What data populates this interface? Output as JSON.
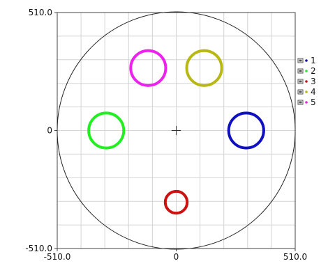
{
  "chart_data": {
    "type": "scatter",
    "title": "",
    "xlabel": "",
    "ylabel": "",
    "xlim": [
      -510.0,
      510.0
    ],
    "ylim": [
      -510.0,
      510.0
    ],
    "grid": true,
    "legend_position": "right",
    "x_tick_labels": [
      "-510.0",
      "0",
      "510.0"
    ],
    "y_tick_labels": [
      "510.0",
      "0",
      "-510.0"
    ],
    "x_tick_values": [
      -510.0,
      0,
      510.0
    ],
    "y_tick_values": [
      510.0,
      0,
      -510.0
    ],
    "boundary_circle": {
      "cx": 0,
      "cy": 0,
      "r": 510.0,
      "color": "#222222"
    },
    "center_marker": {
      "x": 0,
      "y": 0,
      "size": 20
    },
    "series": [
      {
        "name": "1",
        "color": "#1010c0",
        "cx": 300,
        "cy": 0,
        "r": 75
      },
      {
        "name": "2",
        "color": "#22ee22",
        "cx": -300,
        "cy": 0,
        "r": 75
      },
      {
        "name": "3",
        "color": "#cc1111",
        "cx": 0,
        "cy": -310,
        "r": 47
      },
      {
        "name": "4",
        "color": "#b8b814",
        "cx": 120,
        "cy": 270,
        "r": 75
      },
      {
        "name": "5",
        "color": "#ee22ee",
        "cx": -120,
        "cy": 270,
        "r": 75
      }
    ]
  }
}
